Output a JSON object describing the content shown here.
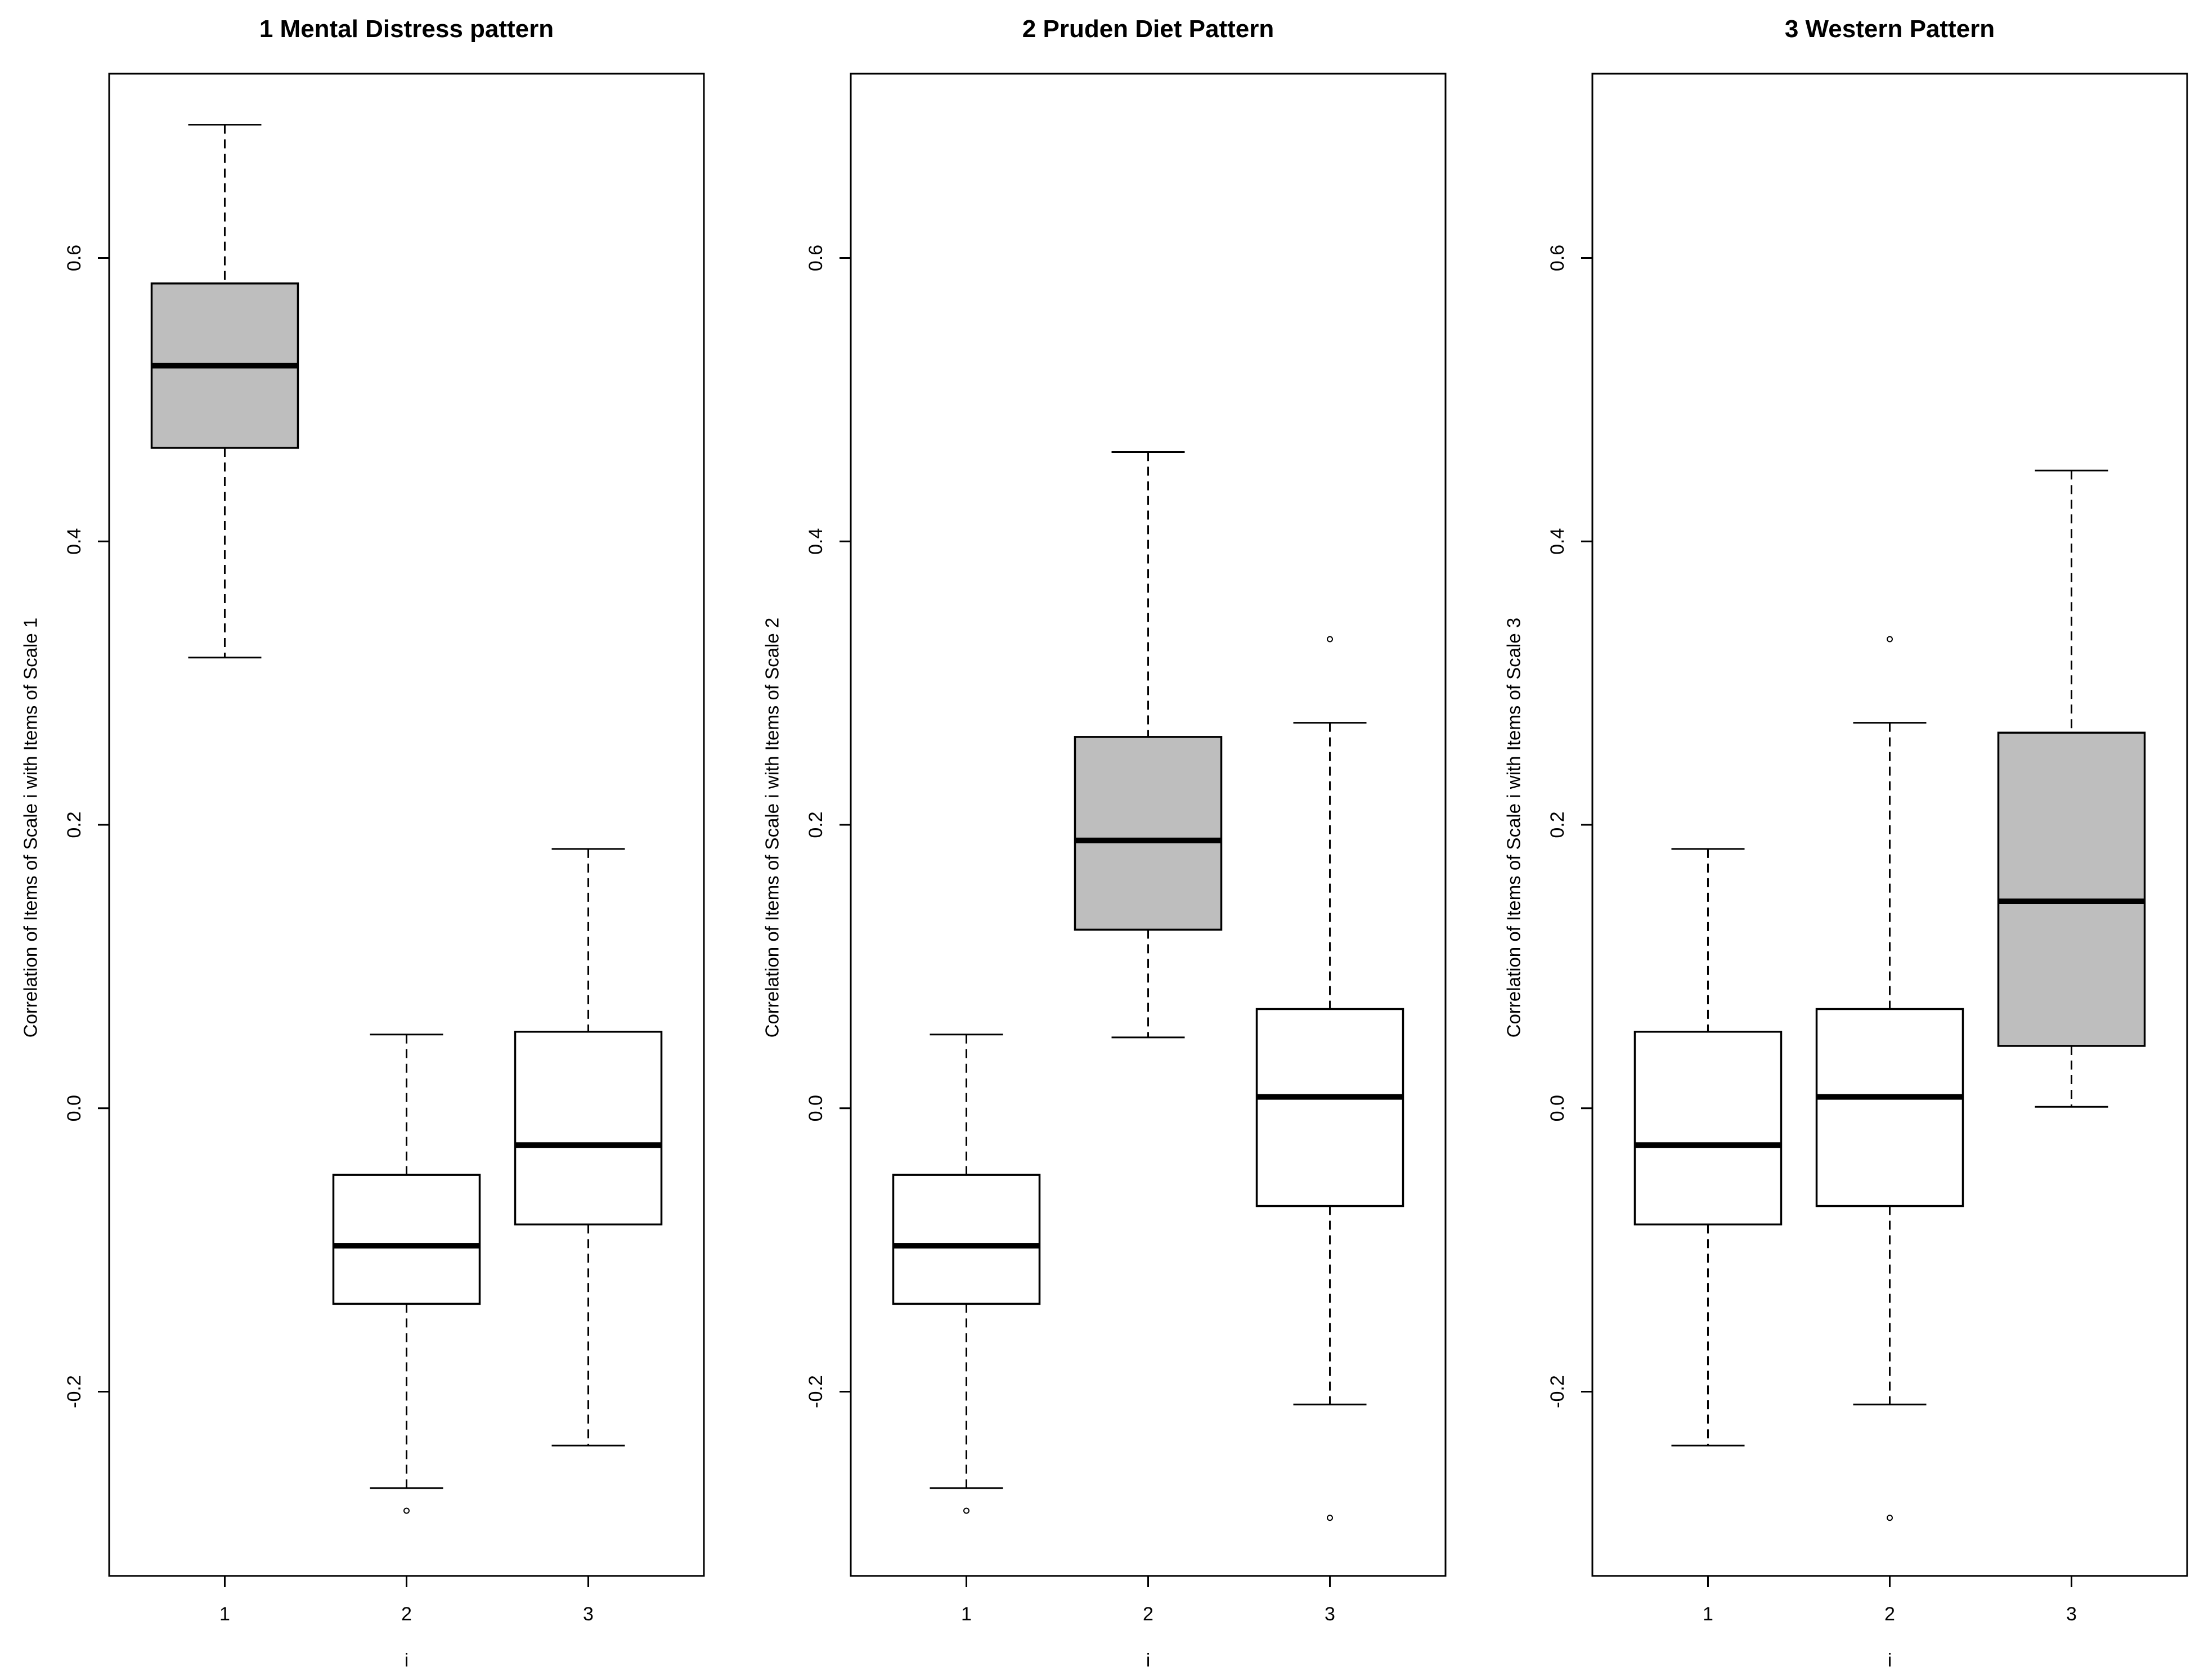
{
  "chart_data": [
    {
      "type": "box",
      "title": "1 Mental Distress pattern",
      "xlabel": "i",
      "ylabel": "Correlation of Items of Scale i with Items of Scale 1",
      "ylim": [
        -0.33,
        0.73
      ],
      "yticks": [
        -0.2,
        0.0,
        0.2,
        0.4,
        0.6
      ],
      "ytick_labels": [
        "-0.2",
        "0.0",
        "0.2",
        "0.4",
        "0.6"
      ],
      "categories": [
        "1",
        "2",
        "3"
      ],
      "highlight_index": 0,
      "boxes": [
        {
          "whisker_low": 0.318,
          "q1": 0.466,
          "median": 0.524,
          "q3": 0.582,
          "whisker_high": 0.694,
          "outliers": []
        },
        {
          "whisker_low": -0.268,
          "q1": -0.138,
          "median": -0.097,
          "q3": -0.047,
          "whisker_high": 0.052,
          "outliers": [
            -0.284
          ]
        },
        {
          "whisker_low": -0.238,
          "q1": -0.082,
          "median": -0.026,
          "q3": 0.054,
          "whisker_high": 0.183,
          "outliers": []
        }
      ]
    },
    {
      "type": "box",
      "title": "2 Pruden Diet Pattern",
      "xlabel": "i",
      "ylabel": "Correlation of Items of Scale i with Items of Scale 2",
      "ylim": [
        -0.33,
        0.73
      ],
      "yticks": [
        -0.2,
        0.0,
        0.2,
        0.4,
        0.6
      ],
      "ytick_labels": [
        "-0.2",
        "0.0",
        "0.2",
        "0.4",
        "0.6"
      ],
      "categories": [
        "1",
        "2",
        "3"
      ],
      "highlight_index": 1,
      "boxes": [
        {
          "whisker_low": -0.268,
          "q1": -0.138,
          "median": -0.097,
          "q3": -0.047,
          "whisker_high": 0.052,
          "outliers": [
            -0.284
          ]
        },
        {
          "whisker_low": 0.05,
          "q1": 0.126,
          "median": 0.189,
          "q3": 0.262,
          "whisker_high": 0.463,
          "outliers": []
        },
        {
          "whisker_low": -0.209,
          "q1": -0.069,
          "median": 0.008,
          "q3": 0.07,
          "whisker_high": 0.272,
          "outliers": [
            0.331,
            -0.289
          ]
        }
      ]
    },
    {
      "type": "box",
      "title": "3 Western Pattern",
      "xlabel": "i",
      "ylabel": "Correlation of Items of Scale i with Items of Scale 3",
      "ylim": [
        -0.33,
        0.73
      ],
      "yticks": [
        -0.2,
        0.0,
        0.2,
        0.4,
        0.6
      ],
      "ytick_labels": [
        "-0.2",
        "0.0",
        "0.2",
        "0.4",
        "0.6"
      ],
      "categories": [
        "1",
        "2",
        "3"
      ],
      "highlight_index": 2,
      "boxes": [
        {
          "whisker_low": -0.238,
          "q1": -0.082,
          "median": -0.026,
          "q3": 0.054,
          "whisker_high": 0.183,
          "outliers": []
        },
        {
          "whisker_low": -0.209,
          "q1": -0.069,
          "median": 0.008,
          "q3": 0.07,
          "whisker_high": 0.272,
          "outliers": [
            0.331,
            -0.289
          ]
        },
        {
          "whisker_low": 0.001,
          "q1": 0.044,
          "median": 0.146,
          "q3": 0.265,
          "whisker_high": 0.45,
          "outliers": []
        }
      ]
    }
  ],
  "colors": {
    "highlight_fill": "#bebebe",
    "box_fill": "#ffffff",
    "stroke": "#000000"
  }
}
